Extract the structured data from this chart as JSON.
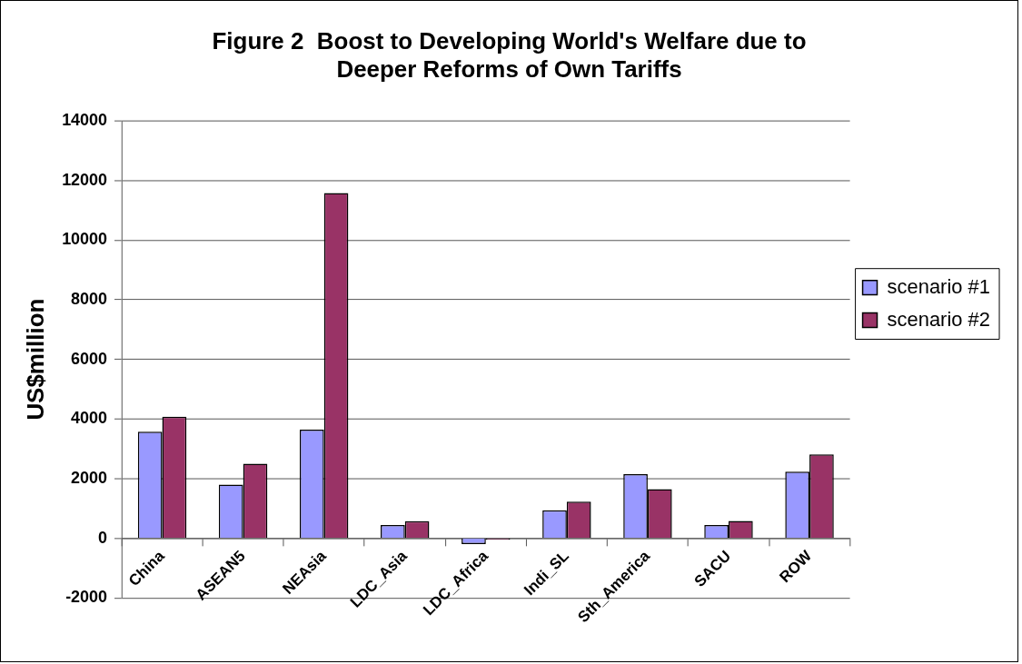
{
  "chart_data": {
    "type": "bar",
    "title": "Figure 2  Boost to Developing World's Welfare due to Deeper Reforms of Own Tariffs",
    "ylabel": "US$million",
    "categories": [
      "China",
      "ASEAN5",
      "NEAsia",
      "LDC_Asia",
      "LDC_Africa",
      "Indi_SL",
      "Sth_America",
      "SACU",
      "ROW"
    ],
    "series": [
      {
        "name": "scenario #1",
        "color": "#9999ff",
        "values": [
          3570,
          1800,
          3640,
          440,
          -200,
          940,
          2150,
          440,
          2230
        ]
      },
      {
        "name": "scenario #2",
        "color": "#993366",
        "values": [
          4080,
          2500,
          11580,
          570,
          -50,
          1230,
          1650,
          580,
          2810
        ]
      }
    ],
    "ylim": [
      -2000,
      14000
    ],
    "yticks": [
      -2000,
      0,
      2000,
      4000,
      6000,
      8000,
      10000,
      12000,
      14000
    ],
    "grid": "y",
    "legend": "right"
  }
}
